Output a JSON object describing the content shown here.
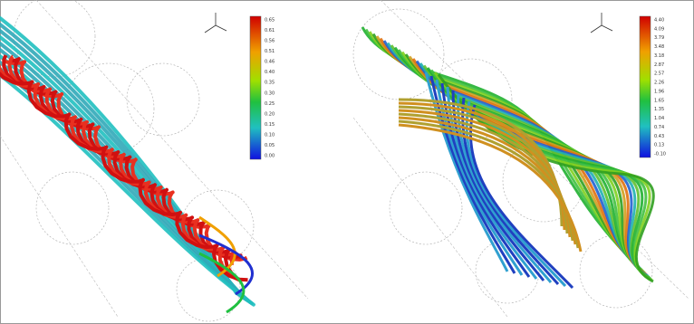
{
  "panels": [
    {
      "colorbar": {
        "labels": [
          "0.65",
          "0.61",
          "0.56",
          "0.51",
          "0.46",
          "0.40",
          "0.35",
          "0.30",
          "0.25",
          "0.20",
          "0.15",
          "0.10",
          "0.05",
          "0.00"
        ]
      }
    },
    {
      "colorbar": {
        "labels": [
          "4.40",
          "4.09",
          "3.79",
          "3.48",
          "3.18",
          "2.87",
          "2.57",
          "2.26",
          "1.96",
          "1.65",
          "1.35",
          "1.04",
          "0.74",
          "0.43",
          "0.13",
          "-0.10"
        ]
      }
    }
  ]
}
